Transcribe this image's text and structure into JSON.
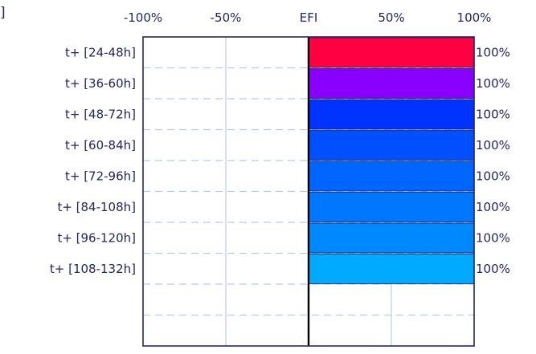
{
  "chart_data": {
    "type": "bar",
    "orientation": "horizontal",
    "title": "",
    "corner_fragment": "]",
    "x_axis": {
      "range": [
        -100,
        100
      ],
      "ticks": [
        {
          "value": -100,
          "label": "-100%"
        },
        {
          "value": -50,
          "label": "-50%"
        },
        {
          "value": 0,
          "label": "EFI"
        },
        {
          "value": 50,
          "label": "50%"
        },
        {
          "value": 100,
          "label": "100%"
        }
      ]
    },
    "grid": true,
    "categories": [
      "t+ [24-48h]",
      "t+ [36-60h]",
      "t+ [48-72h]",
      "t+ [60-84h]",
      "t+ [72-96h]",
      "t+ [84-108h]",
      "t+ [96-120h]",
      "t+ [108-132h]"
    ],
    "values": [
      100,
      100,
      100,
      100,
      100,
      100,
      100,
      100
    ],
    "value_labels": [
      "100%",
      "100%",
      "100%",
      "100%",
      "100%",
      "100%",
      "100%",
      "100%"
    ],
    "bar_colors": [
      "#ff0040",
      "#8a00ff",
      "#0033ff",
      "#0050ff",
      "#0066ff",
      "#0077ff",
      "#0088ff",
      "#00aaff"
    ],
    "empty_rows": 2,
    "colors": {
      "text": "#23236e",
      "frame": "#23236e",
      "grid": "#b7cbef",
      "zero_line": "#000000"
    }
  }
}
